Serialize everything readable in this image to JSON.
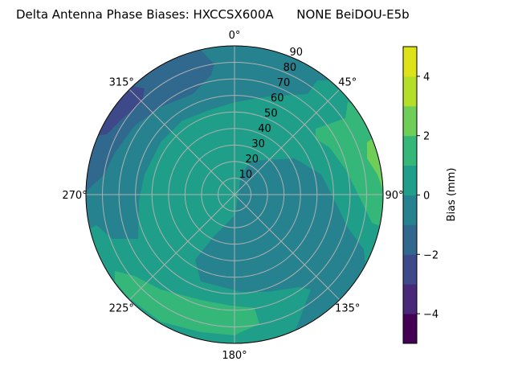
{
  "chart_data": {
    "type": "heatmap",
    "subtype": "polar-filled-contour",
    "title": "Delta Antenna Phase Biases: HXCCSX600A      NONE BeiDOU-E5b",
    "angular_ticks": [
      "0°",
      "45°",
      "90°",
      "135°",
      "180°",
      "225°",
      "270°",
      "315°"
    ],
    "radial_ticks": [
      "10",
      "20",
      "30",
      "40",
      "50",
      "60",
      "70",
      "80",
      "90"
    ],
    "radial_range": [
      0,
      90
    ],
    "angular_direction": "clockwise",
    "zero_location": "top",
    "grid": true,
    "colorbar": {
      "label": "Bias (mm)",
      "range": [
        -5,
        5
      ],
      "levels": [
        -5,
        -4,
        -3,
        -2,
        -1,
        0,
        1,
        2,
        3,
        4,
        5
      ],
      "ticks": [
        "−4",
        "−2",
        "0",
        "2",
        "4"
      ],
      "tick_values": [
        -4,
        -2,
        0,
        2,
        4
      ],
      "colormap": "viridis",
      "colors": [
        "#440154",
        "#482878",
        "#3e4989",
        "#31688e",
        "#26828e",
        "#1f9e89",
        "#35b779",
        "#6ece58",
        "#b5de2b",
        "#dde318"
      ]
    },
    "regions": [
      {
        "level_range": [
          0,
          1
        ],
        "location": "background / center"
      },
      {
        "level_range": [
          -1,
          0
        ],
        "location": "north to west outer ring"
      },
      {
        "level_range": [
          -2,
          -1
        ],
        "location": "north-west outer"
      },
      {
        "level_range": [
          -3,
          -2
        ],
        "location": "near 315° edge"
      },
      {
        "level_range": [
          -1,
          0
        ],
        "location": "south-east interior"
      },
      {
        "level_range": [
          1,
          2
        ],
        "location": "east edge 45°–100°"
      },
      {
        "level_range": [
          2,
          3
        ],
        "location": "east edge near 80°"
      },
      {
        "level_range": [
          1,
          2
        ],
        "location": "south-west edge 200°–240°"
      }
    ]
  }
}
